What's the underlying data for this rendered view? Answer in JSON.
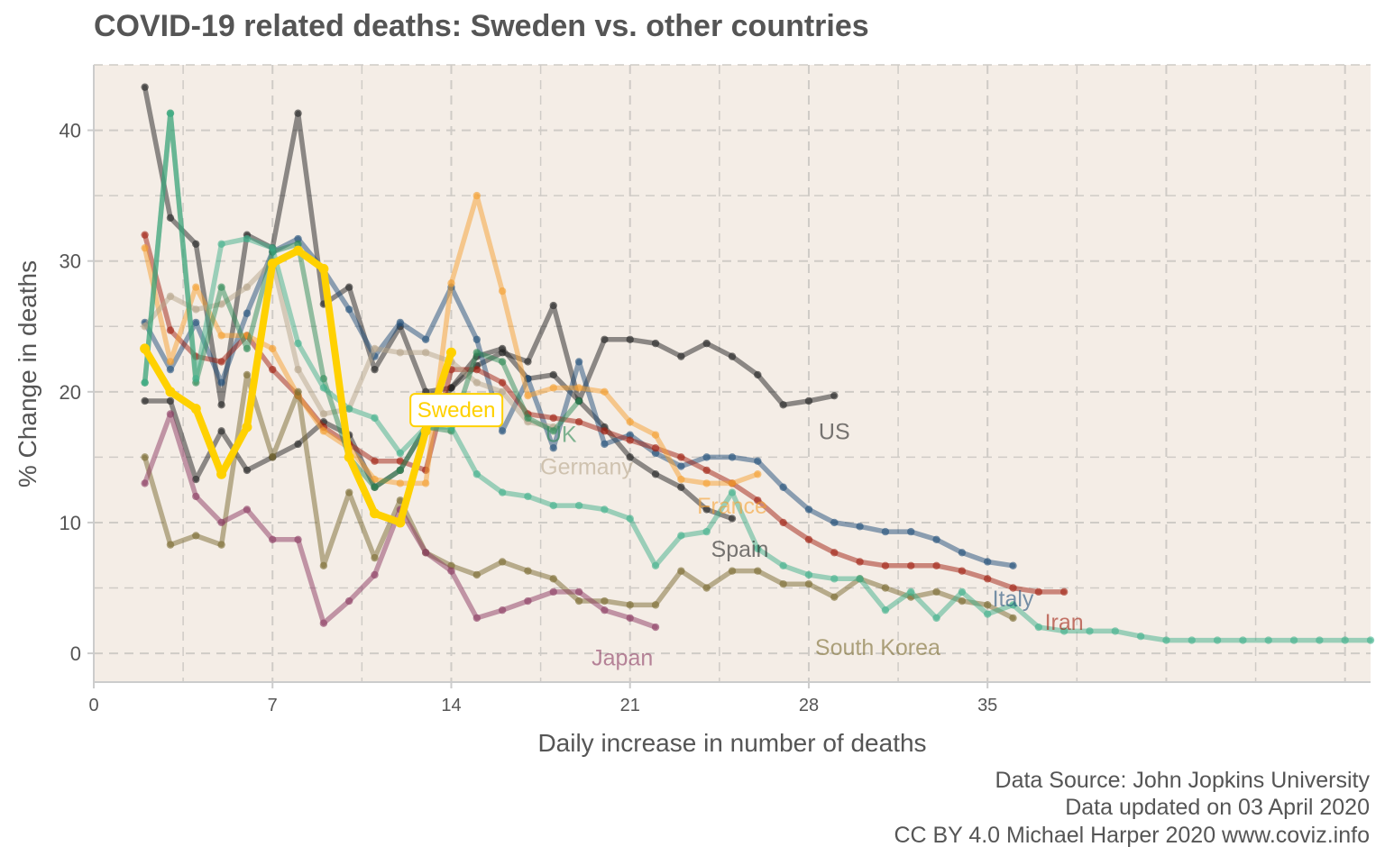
{
  "chart_data": {
    "type": "line",
    "title": "COVID-19 related deaths: Sweden vs. other countries",
    "xlabel": "Daily increase in number of deaths",
    "ylabel": "% Change in deaths",
    "xlim": [
      0,
      50
    ],
    "ylim": [
      -2.2,
      45
    ],
    "xticks": [
      0,
      7,
      14,
      21,
      28,
      35
    ],
    "yticks": [
      0,
      10,
      20,
      30,
      40
    ],
    "grid": true,
    "series": [
      {
        "name": "Sweden",
        "color": "#ffd100",
        "highlight": true,
        "label_style": "box",
        "label_pos": [
          14.2,
          18.6
        ],
        "x": [
          2,
          3,
          4,
          5,
          6,
          7,
          8,
          9,
          10,
          11,
          12,
          13,
          14
        ],
        "y": [
          23.3,
          20,
          18.7,
          13.7,
          17.3,
          29.8,
          30.8,
          29.4,
          15,
          10.7,
          10,
          17,
          23
        ]
      },
      {
        "name": "US",
        "color": "#222222",
        "label_pos": [
          29,
          17
        ],
        "x": [
          2,
          3,
          4,
          5,
          6,
          7,
          8,
          9,
          10,
          11,
          12,
          13,
          14,
          15,
          16,
          17,
          18,
          19,
          20,
          21,
          22,
          23,
          24,
          25,
          26,
          27,
          28,
          29
        ],
        "y": [
          19.3,
          19.3,
          13.3,
          17,
          14,
          15,
          16,
          17.7,
          16.7,
          12.7,
          14,
          17.3,
          20.3,
          22,
          23,
          22.3,
          26.6,
          19.3,
          24,
          24,
          23.7,
          22.7,
          23.7,
          22.7,
          21.3,
          19,
          19.3,
          19.7
        ]
      },
      {
        "name": "Spain",
        "color": "#222222",
        "label_pos": [
          25.3,
          8
        ],
        "x": [
          2,
          3,
          4,
          5,
          6,
          7,
          8,
          9,
          10,
          11,
          12,
          13,
          14,
          15,
          16,
          17,
          18,
          19,
          20,
          21,
          22,
          23,
          24,
          25
        ],
        "y": [
          43.3,
          33.3,
          31.3,
          19,
          32,
          31,
          41.3,
          26.7,
          28,
          21.7,
          25,
          20,
          20.3,
          22.7,
          23.3,
          21,
          21.3,
          19.3,
          17.3,
          15,
          13.7,
          12.7,
          11,
          10.3
        ]
      },
      {
        "name": "Italy",
        "color": "#1f4e79",
        "label_pos": [
          36,
          4.2
        ],
        "x": [
          2,
          3,
          4,
          5,
          6,
          7,
          8,
          9,
          10,
          11,
          12,
          13,
          14,
          15,
          16,
          17,
          18,
          19,
          20,
          21,
          22,
          23,
          24,
          25,
          26,
          27,
          28,
          29,
          30,
          31,
          32,
          33,
          34,
          35,
          36
        ],
        "y": [
          25.3,
          21.7,
          25.3,
          20.7,
          26,
          30.7,
          31.7,
          29.3,
          26.3,
          22.7,
          25.3,
          24,
          28,
          24,
          17,
          21,
          15.7,
          22.3,
          16,
          16.7,
          15.3,
          14.3,
          15,
          15,
          14.7,
          12.7,
          11,
          10,
          9.7,
          9.3,
          9.3,
          8.7,
          7.7,
          7,
          6.7
        ]
      },
      {
        "name": "Iran",
        "color": "#a02010",
        "label_pos": [
          38,
          2.4
        ],
        "x": [
          2,
          3,
          4,
          5,
          6,
          7,
          8,
          9,
          10,
          11,
          12,
          13,
          14,
          15,
          16,
          17,
          18,
          19,
          20,
          21,
          22,
          23,
          24,
          25,
          26,
          27,
          28,
          29,
          30,
          31,
          32,
          33,
          34,
          35,
          36,
          37,
          38
        ],
        "y": [
          32,
          24.7,
          22.7,
          22.3,
          24.3,
          21.7,
          19.7,
          17.3,
          16,
          14.7,
          14.7,
          14,
          21.7,
          21.7,
          20.7,
          18.3,
          18,
          17.7,
          17,
          16.3,
          15.7,
          15,
          14,
          13,
          11.7,
          10,
          8.7,
          7.7,
          7,
          6.7,
          6.7,
          6.7,
          6.3,
          5.7,
          5,
          4.7,
          4.7
        ]
      },
      {
        "name": "France",
        "color": "#f5a030",
        "label_pos": [
          25,
          11.3
        ],
        "x": [
          2,
          3,
          4,
          5,
          6,
          7,
          8,
          9,
          10,
          11,
          12,
          13,
          14,
          15,
          16,
          17,
          18,
          19,
          20,
          21,
          22,
          23,
          24,
          25,
          26
        ],
        "y": [
          31,
          22.3,
          28,
          24.3,
          24.3,
          23.3,
          19.7,
          17,
          15.7,
          13.3,
          13,
          13,
          28.3,
          35,
          27.7,
          19.7,
          20.3,
          20.3,
          20,
          17.7,
          16.7,
          13.3,
          13,
          13,
          13.7
        ]
      },
      {
        "name": "Germany",
        "color": "#b5a58a",
        "label_pos": [
          19.3,
          14.3
        ],
        "x": [
          2,
          3,
          4,
          5,
          6,
          7,
          8,
          9,
          10,
          11,
          12,
          13,
          14,
          15,
          16,
          17,
          18
        ],
        "y": [
          25,
          27.3,
          26.3,
          26.7,
          28,
          30,
          21.7,
          18.3,
          18.7,
          23.3,
          23,
          23,
          22.3,
          20.7,
          20,
          17.7,
          17.3
        ]
      },
      {
        "name": "UK",
        "color": "#2e8b57",
        "label_pos": [
          18.3,
          16.8
        ],
        "x": [
          2,
          3,
          4,
          5,
          6,
          7,
          8,
          9,
          10,
          11,
          12,
          13,
          14,
          15,
          16,
          17,
          18,
          19
        ],
        "y": [
          20.7,
          41.3,
          20.7,
          28,
          23.3,
          30.7,
          31.3,
          21,
          15,
          12.7,
          14,
          17.3,
          17,
          23,
          22.3,
          18,
          17,
          19.3
        ]
      },
      {
        "name": "South Korea",
        "color": "#7a6a30",
        "label_pos": [
          30.7,
          0.5
        ],
        "x": [
          2,
          3,
          4,
          5,
          6,
          7,
          8,
          9,
          10,
          11,
          12,
          13,
          14,
          15,
          16,
          17,
          18,
          19,
          20,
          21,
          22,
          23,
          24,
          25,
          26,
          27,
          28,
          29,
          30,
          31,
          32,
          33,
          34,
          35,
          36
        ],
        "y": [
          15,
          8.3,
          9,
          8.3,
          21.3,
          15,
          20,
          6.7,
          12.3,
          7.3,
          11.7,
          7.7,
          6.7,
          6,
          7,
          6.3,
          5.7,
          4,
          4,
          3.7,
          3.7,
          6.3,
          5,
          6.3,
          6.3,
          5.3,
          5.3,
          4.3,
          5.7,
          5,
          4.3,
          4.7,
          4,
          3.7,
          2.7
        ]
      },
      {
        "name": "Japan",
        "color": "#8b3a62",
        "label_pos": [
          20.7,
          -0.3
        ],
        "x": [
          2,
          3,
          4,
          5,
          6,
          7,
          8,
          9,
          10,
          11,
          12,
          13,
          14,
          15,
          16,
          17,
          18,
          19,
          20,
          21,
          22
        ],
        "y": [
          13,
          18.3,
          12,
          10,
          11,
          8.7,
          8.7,
          2.3,
          4,
          6,
          11,
          7.7,
          6.3,
          2.7,
          3.3,
          4,
          4.7,
          4.7,
          3.3,
          2.7,
          2
        ]
      },
      {
        "name": "",
        "color": "#40b08a",
        "x": [
          2,
          3,
          4,
          5,
          6,
          7,
          8,
          9,
          10,
          11,
          12,
          13,
          14,
          15,
          16,
          17,
          18,
          19,
          20,
          21,
          22,
          23,
          24,
          25,
          26,
          27,
          28,
          29,
          30,
          31,
          32,
          33,
          34,
          35,
          36,
          37,
          38,
          39,
          40,
          41,
          42,
          43,
          44,
          45,
          46,
          47,
          48,
          49,
          50
        ],
        "y": [
          20.7,
          41.3,
          21,
          31.3,
          31.7,
          31,
          23.7,
          20.3,
          18.7,
          18,
          15.3,
          17.3,
          17.3,
          13.7,
          12.3,
          12,
          11.3,
          11.3,
          11,
          10.3,
          6.7,
          9,
          9.3,
          12.3,
          8,
          6.7,
          6,
          5.7,
          5.7,
          3.3,
          4.7,
          2.7,
          4.7,
          3,
          3.7,
          2,
          1.7,
          1.7,
          1.7,
          1.3,
          1,
          1,
          1,
          1,
          1,
          1,
          1,
          1,
          1
        ]
      }
    ]
  },
  "caption": {
    "line1": "Data Source: John Jopkins University",
    "line2": "Data updated on 03 April 2020",
    "line3": "CC BY 4.0 Michael Harper 2020 www.coviz.info"
  }
}
